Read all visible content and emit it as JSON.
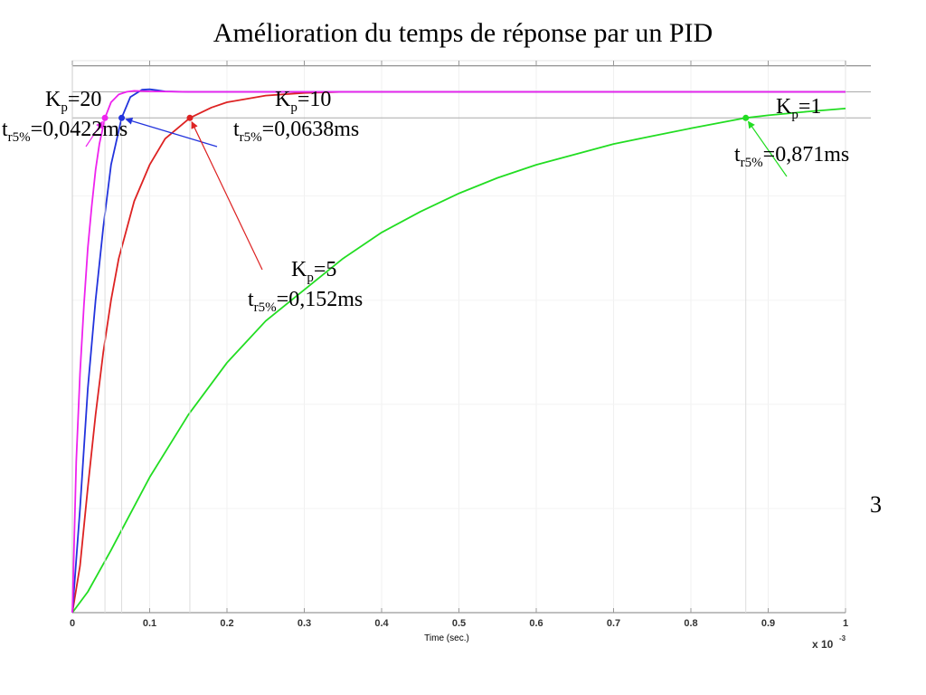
{
  "chart_data": {
    "type": "line",
    "title": "Amélioration du temps de réponse par un PID",
    "xlabel": "Time (sec.)",
    "x_multiplier": "x 10",
    "x_multiplier_exponent": "-3",
    "xlim": [
      0,
      1
    ],
    "ylim": [
      0,
      1.06
    ],
    "x_ticks": [
      "0",
      "0.1",
      "0.2",
      "0.3",
      "0.4",
      "0.5",
      "0.6",
      "0.7",
      "0.8",
      "0.9",
      "1"
    ],
    "reference_lines": [
      1.05,
      1.0,
      0.95
    ],
    "grid": true,
    "series": [
      {
        "name": "Kp=20",
        "color": "#ee22ee",
        "tr5": 0.0422,
        "x": [
          0,
          0.005,
          0.01,
          0.015,
          0.02,
          0.025,
          0.03,
          0.035,
          0.0422,
          0.05,
          0.06,
          0.07,
          0.08,
          0.1,
          0.15,
          0.2,
          0.3,
          0.5,
          1.0
        ],
        "y": [
          0,
          0.29,
          0.46,
          0.59,
          0.7,
          0.78,
          0.85,
          0.9,
          0.95,
          0.98,
          0.995,
          1.0,
          1.002,
          1.001,
          1.0,
          1.0,
          1.0,
          1.0,
          1.0
        ]
      },
      {
        "name": "Kp=10",
        "color": "#2233dd",
        "tr5": 0.0638,
        "x": [
          0,
          0.01,
          0.02,
          0.03,
          0.04,
          0.05,
          0.0638,
          0.075,
          0.09,
          0.1,
          0.11,
          0.12,
          0.15,
          0.2,
          0.3,
          0.5,
          1.0
        ],
        "y": [
          0,
          0.2,
          0.43,
          0.6,
          0.74,
          0.86,
          0.95,
          0.99,
          1.004,
          1.005,
          1.003,
          1.001,
          1.0,
          1.0,
          1.0,
          1.0,
          1.0
        ]
      },
      {
        "name": "Kp=5",
        "color": "#dd2222",
        "tr5": 0.152,
        "x": [
          0,
          0.01,
          0.02,
          0.03,
          0.04,
          0.05,
          0.06,
          0.08,
          0.1,
          0.12,
          0.152,
          0.18,
          0.2,
          0.25,
          0.3,
          0.35,
          0.4,
          0.5,
          1.0
        ],
        "y": [
          0,
          0.09,
          0.24,
          0.38,
          0.5,
          0.6,
          0.68,
          0.79,
          0.86,
          0.91,
          0.95,
          0.97,
          0.98,
          0.993,
          0.998,
          1.0,
          1.0,
          1.0,
          1.0
        ]
      },
      {
        "name": "Kp=1",
        "color": "#22dd22",
        "tr5": 0.871,
        "x": [
          0,
          0.02,
          0.05,
          0.1,
          0.15,
          0.2,
          0.25,
          0.3,
          0.35,
          0.4,
          0.45,
          0.5,
          0.55,
          0.6,
          0.65,
          0.7,
          0.75,
          0.8,
          0.871,
          0.9,
          0.95,
          1.0
        ],
        "y": [
          0,
          0.04,
          0.12,
          0.26,
          0.38,
          0.48,
          0.56,
          0.62,
          0.68,
          0.73,
          0.77,
          0.805,
          0.835,
          0.86,
          0.88,
          0.9,
          0.915,
          0.93,
          0.95,
          0.955,
          0.962,
          0.968
        ]
      }
    ],
    "annotations": [
      {
        "id": "kp20",
        "k_base": "K",
        "k_sub": "p",
        "k_rest": "=20",
        "t_base": "t",
        "t_sub": "r5%",
        "t_rest": "=0,0422ms"
      },
      {
        "id": "kp10",
        "k_base": "K",
        "k_sub": "p",
        "k_rest": "=10",
        "t_base": "t",
        "t_sub": "r5%",
        "t_rest": "=0,0638ms"
      },
      {
        "id": "kp5",
        "k_base": "K",
        "k_sub": "p",
        "k_rest": "=5",
        "t_base": "t",
        "t_sub": "r5%",
        "t_rest": "=0,152ms"
      },
      {
        "id": "kp1",
        "k_base": "K",
        "k_sub": "p",
        "k_rest": "=1",
        "t_base": "t",
        "t_sub": "r5%",
        "t_rest": "=0,871ms"
      }
    ],
    "stray_glyph": "3"
  }
}
